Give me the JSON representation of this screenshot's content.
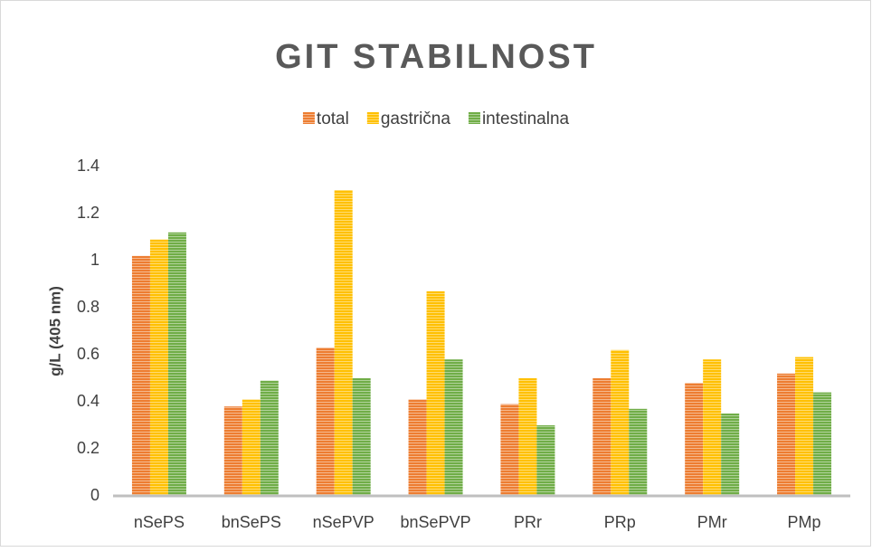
{
  "chart_data": {
    "type": "bar",
    "title": "GIT STABILNOST",
    "y_label": "g/L (405 nm)",
    "categories": [
      "nSePS",
      "bnSePS",
      "nSePVP",
      "bnSePVP",
      "PRr",
      "PRp",
      "PMr",
      "PMp"
    ],
    "series": [
      {
        "name": "total",
        "color": "#ed7d31",
        "values": [
          1.02,
          0.38,
          0.63,
          0.41,
          0.39,
          0.5,
          0.48,
          0.52
        ]
      },
      {
        "name": "gastrična",
        "color": "#ffc000",
        "values": [
          1.09,
          0.41,
          1.3,
          0.87,
          0.5,
          0.62,
          0.58,
          0.59
        ]
      },
      {
        "name": "intestinalna",
        "color": "#70ad47",
        "values": [
          1.12,
          0.49,
          0.5,
          0.58,
          0.3,
          0.37,
          0.35,
          0.44
        ]
      }
    ],
    "ylim": [
      0,
      1.4
    ],
    "yticks": [
      0,
      0.2,
      0.4,
      0.6,
      0.8,
      1,
      1.2,
      1.4
    ],
    "grid": false,
    "legend": "top"
  }
}
